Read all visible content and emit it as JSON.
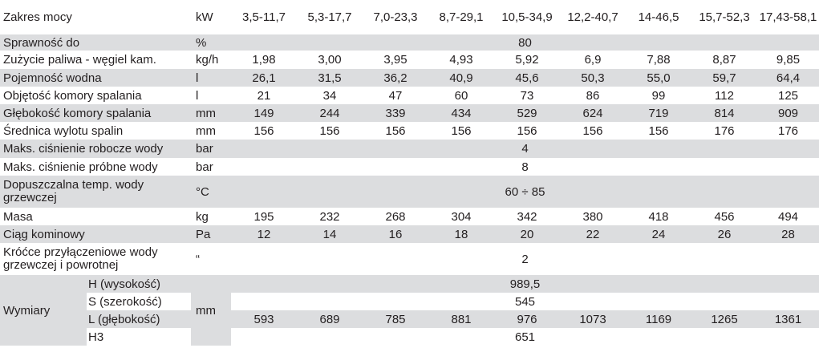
{
  "header": {
    "label": "Zakres mocy",
    "unit": "kW",
    "ranges": [
      "3,5-11,7",
      "5,3-17,7",
      "7,0-23,3",
      "8,7-29,1",
      "10,5-34,9",
      "12,2-40,7",
      "14-46,5",
      "15,7-52,3",
      "17,43-58,1"
    ]
  },
  "rows": {
    "sprawnosc": {
      "label": "Sprawność do",
      "unit": "%",
      "value": "80"
    },
    "zuzycie": {
      "label": "Zużycie paliwa - węgiel kam.",
      "unit": "kg/h",
      "values": [
        "1,98",
        "3,00",
        "3,95",
        "4,93",
        "5,92",
        "6,9",
        "7,88",
        "8,87",
        "9,85"
      ]
    },
    "pojemnosc": {
      "label": "Pojemność wodna",
      "unit": "l",
      "values": [
        "26,1",
        "31,5",
        "36,2",
        "40,9",
        "45,6",
        "50,3",
        "55,0",
        "59,7",
        "64,4"
      ]
    },
    "objetosc": {
      "label": "Objętość komory spalania",
      "unit": "l",
      "values": [
        "21",
        "34",
        "47",
        "60",
        "73",
        "86",
        "99",
        "112",
        "125"
      ]
    },
    "glebokosc": {
      "label": "Głębokość komory spalania",
      "unit": "mm",
      "values": [
        "149",
        "244",
        "339",
        "434",
        "529",
        "624",
        "719",
        "814",
        "909"
      ]
    },
    "srednica": {
      "label": "Średnica wylotu spalin",
      "unit": "mm",
      "values": [
        "156",
        "156",
        "156",
        "156",
        "156",
        "156",
        "156",
        "176",
        "176"
      ]
    },
    "cisnienie_robocze": {
      "label": "Maks. ciśnienie robocze wody",
      "unit": "bar",
      "value": "4"
    },
    "cisnienie_probne": {
      "label": "Maks. ciśnienie próbne wody",
      "unit": "bar",
      "value": "8"
    },
    "temperatura": {
      "label": "Dopuszczalna temp. wody grzewczej",
      "unit": "°C",
      "value": "60 ÷ 85"
    },
    "masa": {
      "label": "Masa",
      "unit": "kg",
      "values": [
        "195",
        "232",
        "268",
        "304",
        "342",
        "380",
        "418",
        "456",
        "494"
      ]
    },
    "ciag": {
      "label": "Ciąg kominowy",
      "unit": "Pa",
      "values": [
        "12",
        "14",
        "16",
        "18",
        "20",
        "22",
        "24",
        "26",
        "28"
      ]
    },
    "krocce": {
      "label": "Króćce przyłączeniowe wody grzewczej i powrotnej",
      "unit": "“",
      "value": "2"
    }
  },
  "wymiary": {
    "label": "Wymiary",
    "unit": "mm",
    "h": {
      "label": "H (wysokość)",
      "value": "989,5"
    },
    "s": {
      "label": "S (szerokość)",
      "value": "545"
    },
    "l": {
      "label": "L (głębokość)",
      "values": [
        "593",
        "689",
        "785",
        "881",
        "976",
        "1073",
        "1169",
        "1265",
        "1361"
      ]
    },
    "h3": {
      "label": "H3",
      "value": "651"
    }
  }
}
